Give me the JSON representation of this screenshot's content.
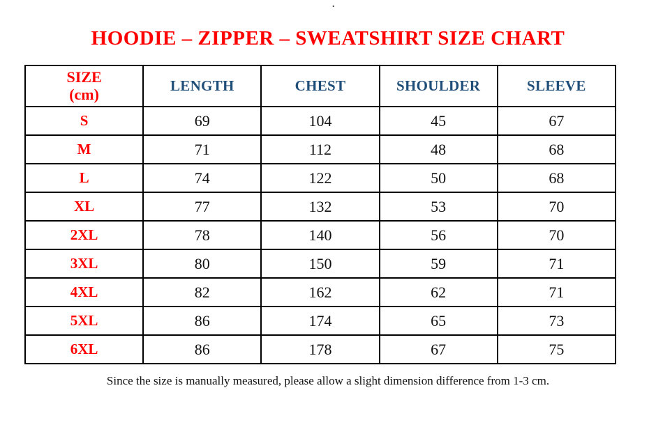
{
  "stray_mark": ".",
  "title": "HOODIE – ZIPPER – SWEATSHIRT SIZE CHART",
  "table": {
    "size_header": {
      "line1": "SIZE",
      "line2": "(cm)"
    },
    "columns": [
      "LENGTH",
      "CHEST",
      "SHOULDER",
      "SLEEVE"
    ],
    "rows": [
      {
        "size": "S",
        "length": "69",
        "chest": "104",
        "shoulder": "45",
        "sleeve": "67"
      },
      {
        "size": "M",
        "length": "71",
        "chest": "112",
        "shoulder": "48",
        "sleeve": "68"
      },
      {
        "size": "L",
        "length": "74",
        "chest": "122",
        "shoulder": "50",
        "sleeve": "68"
      },
      {
        "size": "XL",
        "length": "77",
        "chest": "132",
        "shoulder": "53",
        "sleeve": "70"
      },
      {
        "size": "2XL",
        "length": "78",
        "chest": "140",
        "shoulder": "56",
        "sleeve": "70"
      },
      {
        "size": "3XL",
        "length": "80",
        "chest": "150",
        "shoulder": "59",
        "sleeve": "71"
      },
      {
        "size": "4XL",
        "length": "82",
        "chest": "162",
        "shoulder": "62",
        "sleeve": "71"
      },
      {
        "size": "5XL",
        "length": "86",
        "chest": "174",
        "shoulder": "65",
        "sleeve": "73"
      },
      {
        "size": "6XL",
        "length": "86",
        "chest": "178",
        "shoulder": "67",
        "sleeve": "75"
      }
    ]
  },
  "footer_note": "Since the size is manually measured, please allow a slight dimension difference from 1-3 cm.",
  "colors": {
    "title_red": "#ff0000",
    "header_blue": "#1f4e79",
    "text_black": "#111111",
    "border_black": "#000000"
  }
}
